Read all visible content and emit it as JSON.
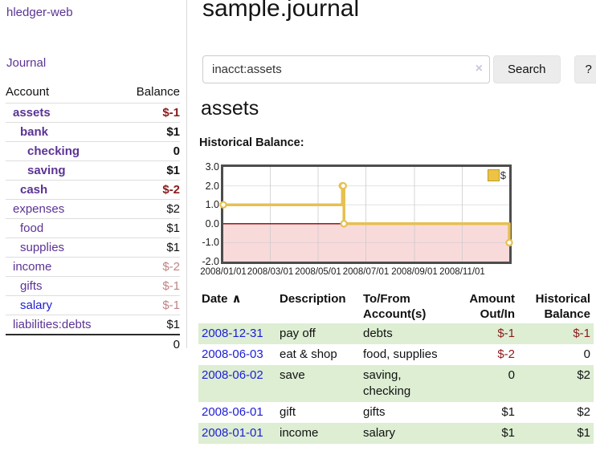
{
  "sidebar": {
    "brand": "hledger-web",
    "journal_link": "Journal",
    "accounts_header": {
      "account": "Account",
      "balance": "Balance"
    },
    "accounts": [
      {
        "name": "assets",
        "indent": 1,
        "bold": true,
        "link_color": "purple",
        "balance": "$-1",
        "balance_class": "neg"
      },
      {
        "name": "bank",
        "indent": 2,
        "bold": true,
        "link_color": "purple",
        "balance": "$1",
        "balance_class": ""
      },
      {
        "name": "checking",
        "indent": 3,
        "bold": true,
        "link_color": "purple",
        "balance": "0",
        "balance_class": ""
      },
      {
        "name": "saving",
        "indent": 3,
        "bold": true,
        "link_color": "purple",
        "balance": "$1",
        "balance_class": ""
      },
      {
        "name": "cash",
        "indent": 2,
        "bold": true,
        "link_color": "purple",
        "balance": "$-2",
        "balance_class": "neg"
      },
      {
        "name": "expenses",
        "indent": 1,
        "bold": false,
        "link_color": "purple",
        "balance": "$2",
        "balance_class": ""
      },
      {
        "name": "food",
        "indent": 2,
        "bold": false,
        "link_color": "purple",
        "balance": "$1",
        "balance_class": ""
      },
      {
        "name": "supplies",
        "indent": 2,
        "bold": false,
        "link_color": "purple",
        "balance": "$1",
        "balance_class": ""
      },
      {
        "name": "income",
        "indent": 1,
        "bold": false,
        "link_color": "purple",
        "balance": "$-2",
        "balance_class": "neg-light"
      },
      {
        "name": "gifts",
        "indent": 2,
        "bold": false,
        "link_color": "purple",
        "balance": "$-1",
        "balance_class": "neg-light"
      },
      {
        "name": "salary",
        "indent": 2,
        "bold": false,
        "link_color": "blue",
        "balance": "$-1",
        "balance_class": "neg-light"
      },
      {
        "name": "liabilities:debts",
        "indent": 1,
        "bold": false,
        "link_color": "purple",
        "balance": "$1",
        "balance_class": ""
      }
    ],
    "total": "0"
  },
  "header": {
    "title": "sample.journal"
  },
  "search": {
    "value": "inacct:assets",
    "clear_icon": "×",
    "search_button": "Search",
    "help_button": "?"
  },
  "account_view": {
    "title": "assets",
    "chart_label": "Historical Balance:"
  },
  "chart_data": {
    "type": "line",
    "style": "step-after",
    "title": "Historical Balance",
    "series": [
      {
        "name": "$",
        "color": "#e6c050",
        "points": [
          {
            "date": "2008-01-01",
            "day": 0,
            "value": 1
          },
          {
            "date": "2008-06-01",
            "day": 152,
            "value": 2
          },
          {
            "date": "2008-06-02",
            "day": 153,
            "value": 2
          },
          {
            "date": "2008-06-03",
            "day": 154,
            "value": 0
          },
          {
            "date": "2008-12-31",
            "day": 365,
            "value": -1
          }
        ]
      }
    ],
    "x_domain_days": [
      0,
      365
    ],
    "ylim": [
      -2,
      3
    ],
    "y_ticks": [
      {
        "label": "3.0",
        "value": 3
      },
      {
        "label": "2.0",
        "value": 2
      },
      {
        "label": "1.0",
        "value": 1
      },
      {
        "label": "0.0",
        "value": 0
      },
      {
        "label": "-1.0",
        "value": -1
      },
      {
        "label": "-2.0",
        "value": -2
      }
    ],
    "x_ticks": [
      {
        "label": "2008/01/01",
        "day": 0
      },
      {
        "label": "2008/03/01",
        "day": 60
      },
      {
        "label": "2008/05/01",
        "day": 121
      },
      {
        "label": "2008/07/01",
        "day": 182
      },
      {
        "label": "2008/09/01",
        "day": 244
      },
      {
        "label": "2008/11/01",
        "day": 305
      }
    ],
    "legend": {
      "label": "$",
      "position": "top-right"
    },
    "grid": true,
    "negative_region_color": "#f9dada",
    "zero_line_color": "#8b0000"
  },
  "register": {
    "headers": {
      "date": "Date",
      "sort_icon": "∧",
      "description": "Description",
      "accounts": "To/From Account(s)",
      "amount": "Amount Out/In",
      "balance": "Historical Balance"
    },
    "rows": [
      {
        "date": "2008-12-31",
        "description": "pay off",
        "accounts": "debts",
        "amount": "$-1",
        "amount_class": "neg",
        "balance": "$-1",
        "balance_class": "neg"
      },
      {
        "date": "2008-06-03",
        "description": "eat & shop",
        "accounts": "food, supplies",
        "amount": "$-2",
        "amount_class": "neg",
        "balance": "0",
        "balance_class": ""
      },
      {
        "date": "2008-06-02",
        "description": "save",
        "accounts": "saving,\nchecking",
        "amount": "0",
        "amount_class": "",
        "balance": "$2",
        "balance_class": ""
      },
      {
        "date": "2008-06-01",
        "description": "gift",
        "accounts": "gifts",
        "amount": "$1",
        "amount_class": "",
        "balance": "$2",
        "balance_class": ""
      },
      {
        "date": "2008-01-01",
        "description": "income",
        "accounts": "salary",
        "amount": "$1",
        "amount_class": "",
        "balance": "$1",
        "balance_class": ""
      }
    ]
  },
  "colors": {
    "link_purple": "#5b3394",
    "link_blue": "#1d1dd6",
    "negative_dark_red": "#8b1a1a",
    "negative_light_red": "#c08383",
    "row_stripe_green": "#ddeed3",
    "chart_gold": "#e6c050",
    "chart_negative_bg": "#f9dada",
    "button_gray": "#ececec"
  }
}
